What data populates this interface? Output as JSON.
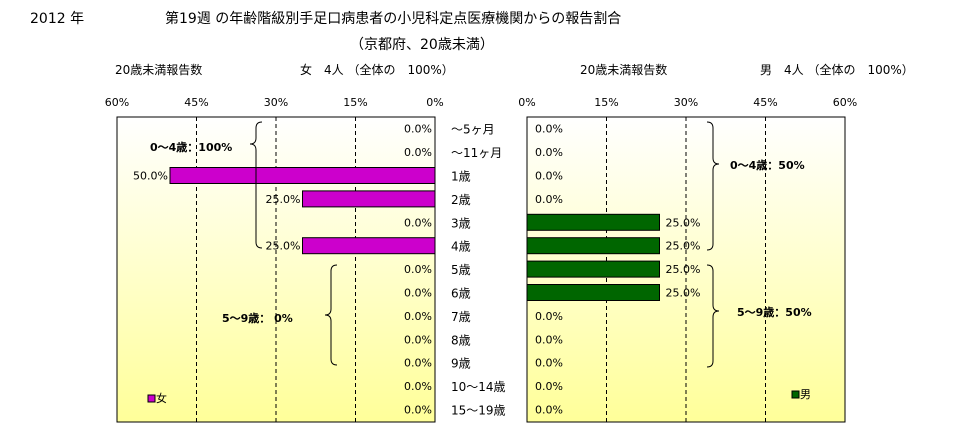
{
  "header": {
    "year": "2012 年",
    "title_line1": "第19週 の年齢階級別手足口病患者の小児科定点医療機関からの報告割合",
    "title_line2": "（京都府、20歳未満）"
  },
  "left_panel": {
    "report_label": "20歳未満報告数",
    "summary": "女　4人 （全体の　100%）",
    "group_label_0_4": "0～4歳：100%",
    "group_label_5_9": "5～9歳： 0%",
    "legend": "女"
  },
  "right_panel": {
    "report_label": "20歳未満報告数",
    "summary": "男　4人 （全体の　100%）",
    "group_label_0_4": "0～4歳：50%",
    "group_label_5_9": "5～9歳：50%",
    "legend": "男"
  },
  "colors": {
    "female": "#cc00cc",
    "male": "#006600",
    "plot_bg_top": "#ffffff",
    "plot_bg_bottom": "#ffff99",
    "grid": "#000000"
  },
  "chart_data": [
    {
      "type": "bar",
      "orientation": "horizontal",
      "direction": "right-to-left",
      "categories": [
        "～5ヶ月",
        "～11ヶ月",
        "1歳",
        "2歳",
        "3歳",
        "4歳",
        "5歳",
        "6歳",
        "7歳",
        "8歳",
        "9歳",
        "10～14歳",
        "15～19歳"
      ],
      "series": [
        {
          "name": "女",
          "values": [
            0,
            0,
            50,
            25,
            0,
            25,
            0,
            0,
            0,
            0,
            0,
            0,
            0
          ]
        }
      ],
      "data_labels": [
        "0.0%",
        "0.0%",
        "50.0%",
        "25.0%",
        "0.0%",
        "25.0%",
        "0.0%",
        "0.0%",
        "0.0%",
        "0.0%",
        "0.0%",
        "0.0%",
        "0.0%"
      ],
      "xlim": [
        0,
        60
      ],
      "ticks": [
        "60%",
        "45%",
        "30%",
        "15%",
        "0%"
      ],
      "grid": "vertical dashed",
      "legend": "bottom-left"
    },
    {
      "type": "bar",
      "orientation": "horizontal",
      "direction": "left-to-right",
      "categories": [
        "～5ヶ月",
        "～11ヶ月",
        "1歳",
        "2歳",
        "3歳",
        "4歳",
        "5歳",
        "6歳",
        "7歳",
        "8歳",
        "9歳",
        "10～14歳",
        "15～19歳"
      ],
      "series": [
        {
          "name": "男",
          "values": [
            0,
            0,
            0,
            0,
            25,
            25,
            25,
            25,
            0,
            0,
            0,
            0,
            0
          ]
        }
      ],
      "data_labels": [
        "0.0%",
        "0.0%",
        "0.0%",
        "0.0%",
        "25.0%",
        "25.0%",
        "25.0%",
        "25.0%",
        "0.0%",
        "0.0%",
        "0.0%",
        "0.0%",
        "0.0%"
      ],
      "xlim": [
        0,
        60
      ],
      "ticks": [
        "0%",
        "15%",
        "30%",
        "45%",
        "60%"
      ],
      "grid": "vertical dashed",
      "legend": "bottom-right"
    }
  ]
}
